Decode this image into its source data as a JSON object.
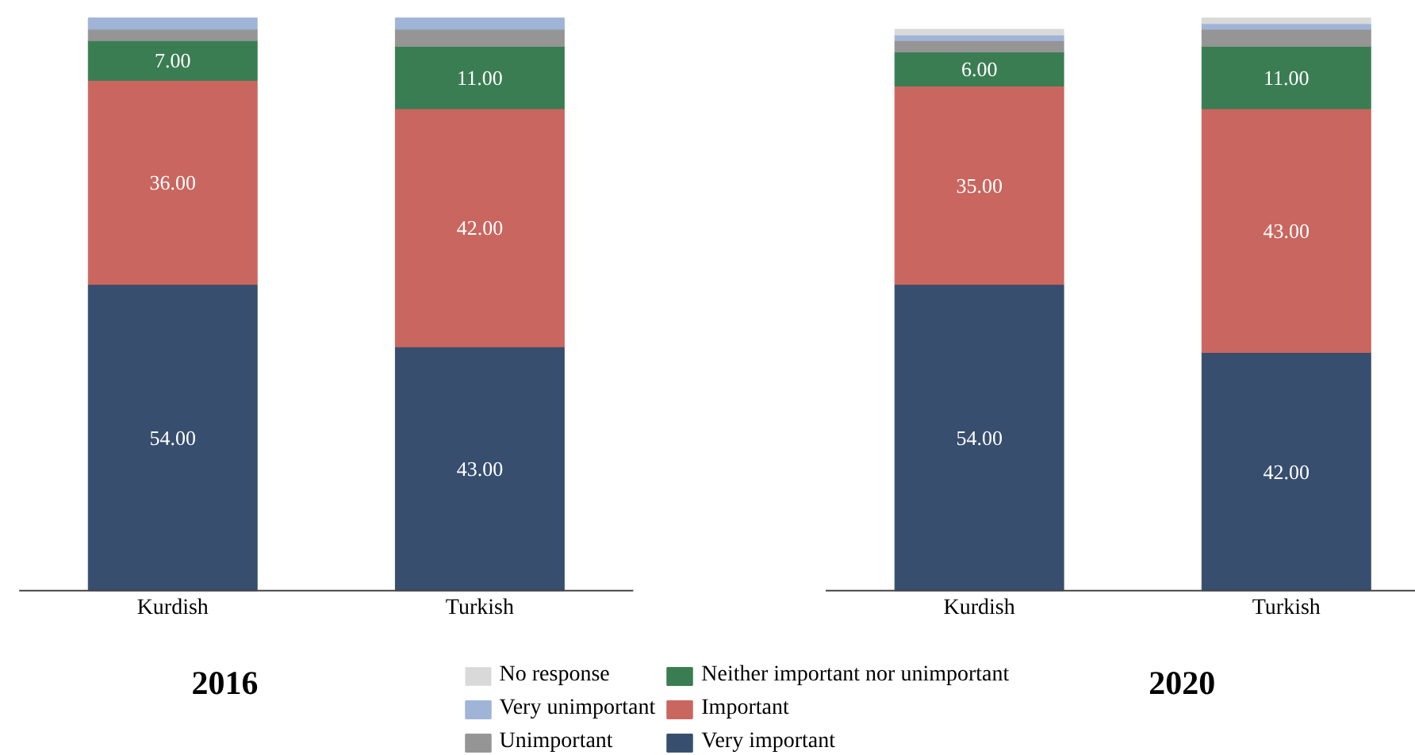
{
  "chart_data": [
    {
      "type": "bar",
      "title": "2016",
      "categories": [
        "Kurdish",
        "Turkish"
      ],
      "stacked": true,
      "legend": "bottom right",
      "series": [
        {
          "name": "Very important",
          "color": "#374e6e",
          "values": [
            54,
            43
          ],
          "value_labels": [
            "54.00",
            "43.00"
          ]
        },
        {
          "name": "Important",
          "color": "#c9665f",
          "values": [
            36,
            42
          ],
          "value_labels": [
            "36.00",
            "42.00"
          ]
        },
        {
          "name": "Neither important nor unimportant",
          "color": "#3b7d53",
          "values": [
            7,
            11
          ],
          "value_labels": [
            "7.00",
            "11.00"
          ]
        },
        {
          "name": "Unimportant",
          "color": "#959595",
          "values": [
            2,
            3
          ]
        },
        {
          "name": "Very unimportant",
          "color": "#9fb4d6",
          "values": [
            2,
            2
          ]
        }
      ]
    },
    {
      "type": "bar",
      "title": "2020",
      "categories": [
        "Kurdish",
        "Turkish"
      ],
      "stacked": true,
      "legend": "bottom left",
      "series": [
        {
          "name": "Very important",
          "color": "#374e6e",
          "values": [
            54,
            42
          ],
          "value_labels": [
            "54.00",
            "42.00"
          ]
        },
        {
          "name": "Important",
          "color": "#c9665f",
          "values": [
            35,
            43
          ],
          "value_labels": [
            "35.00",
            "43.00"
          ]
        },
        {
          "name": "Neither important nor unimportant",
          "color": "#3b7d53",
          "values": [
            6,
            11
          ],
          "value_labels": [
            "6.00",
            "11.00"
          ]
        },
        {
          "name": "Unimportant",
          "color": "#959595",
          "values": [
            2,
            3
          ]
        },
        {
          "name": "Very unimportant",
          "color": "#9fb4d6",
          "values": [
            1,
            1
          ]
        },
        {
          "name": "No response",
          "color": "#d9d9d9",
          "values": [
            1,
            1
          ]
        }
      ]
    }
  ]
}
